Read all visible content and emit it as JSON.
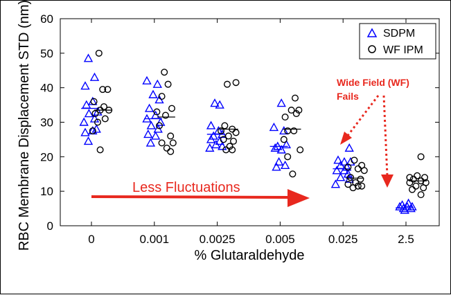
{
  "chart_data": {
    "type": "scatter",
    "xlabel": "% Glutaraldehyde",
    "ylabel": "RBC Membrane Displacement STD (nm)",
    "categories": [
      "0",
      "0.001",
      "0.0025",
      "0.005",
      "0.025",
      "2.5"
    ],
    "ylim": [
      0,
      60
    ],
    "yticks": [
      0,
      10,
      20,
      30,
      40,
      50,
      60
    ],
    "grid": false,
    "legend_position": "top-right",
    "series": [
      {
        "name": "SDPM",
        "marker": "triangle",
        "color": "#0000ff",
        "points": [
          [
            [
              -0.05,
              48.5
            ],
            [
              0.05,
              43
            ],
            [
              -0.1,
              40.5
            ],
            [
              0.02,
              36
            ],
            [
              -0.08,
              35
            ],
            [
              0.1,
              33
            ],
            [
              -0.04,
              32.5
            ],
            [
              0.05,
              31
            ],
            [
              -0.12,
              30
            ],
            [
              0.08,
              28
            ],
            [
              -0.1,
              27
            ],
            [
              0.02,
              27.5
            ],
            [
              -0.05,
              24.5
            ]
          ],
          [
            [
              -0.12,
              42
            ],
            [
              0.05,
              41
            ],
            [
              -0.02,
              38
            ],
            [
              0.08,
              36.5
            ],
            [
              -0.08,
              34
            ],
            [
              0.02,
              32
            ],
            [
              -0.12,
              31
            ],
            [
              0.1,
              30
            ],
            [
              -0.05,
              29
            ],
            [
              0.06,
              28
            ],
            [
              -0.1,
              26.5
            ],
            [
              0.02,
              26
            ],
            [
              -0.06,
              24
            ]
          ],
          [
            [
              -0.04,
              35.5
            ],
            [
              0.04,
              35
            ],
            [
              -0.1,
              29
            ],
            [
              0.02,
              27.5
            ],
            [
              -0.06,
              26
            ],
            [
              0.08,
              26.5
            ],
            [
              -0.1,
              25
            ],
            [
              0.04,
              24.5
            ],
            [
              -0.02,
              23.5
            ],
            [
              0.08,
              23
            ],
            [
              -0.12,
              22.5
            ]
          ],
          [
            [
              0.02,
              35.5
            ],
            [
              -0.1,
              28.5
            ],
            [
              0.06,
              27.5
            ],
            [
              -0.04,
              23
            ],
            [
              0.1,
              23.5
            ],
            [
              -0.08,
              22.5
            ],
            [
              0.02,
              22
            ],
            [
              -0.02,
              18.5
            ],
            [
              0.08,
              17.5
            ],
            [
              -0.06,
              17
            ]
          ],
          [
            [
              0.1,
              22.5
            ],
            [
              -0.08,
              19
            ],
            [
              0.02,
              18.5
            ],
            [
              0.12,
              18.5
            ],
            [
              -0.04,
              17.5
            ],
            [
              0.06,
              17
            ],
            [
              -0.1,
              16
            ],
            [
              0.02,
              16
            ],
            [
              0.08,
              15
            ],
            [
              -0.04,
              14
            ],
            [
              0.1,
              13.5
            ],
            [
              -0.12,
              12
            ]
          ],
          [
            [
              -0.1,
              5.5
            ],
            [
              -0.04,
              5
            ],
            [
              0.02,
              5.5
            ],
            [
              0.08,
              5
            ],
            [
              -0.06,
              6
            ],
            [
              0.04,
              6.5
            ],
            [
              0.1,
              5.5
            ],
            [
              -0.02,
              4.5
            ]
          ]
        ],
        "medians": [
          34.0,
          31.0,
          26.5,
          23.0,
          16.5,
          5.2
        ]
      },
      {
        "name": "WF IPM",
        "marker": "circle",
        "color": "#000000",
        "points": [
          [
            [
              0.12,
              50
            ],
            [
              0.18,
              39.5
            ],
            [
              0.26,
              39.5
            ],
            [
              0.04,
              36
            ],
            [
              0.2,
              34.5
            ],
            [
              0.14,
              33.5
            ],
            [
              0.28,
              33.5
            ],
            [
              0.06,
              32.5
            ],
            [
              0.22,
              31
            ],
            [
              0.1,
              30
            ],
            [
              0.02,
              27.5
            ],
            [
              0.14,
              22
            ]
          ],
          [
            [
              0.16,
              44.5
            ],
            [
              0.22,
              41
            ],
            [
              0.12,
              37.5
            ],
            [
              0.28,
              34
            ],
            [
              0.04,
              33
            ],
            [
              0.18,
              32
            ],
            [
              0.08,
              29
            ],
            [
              0.26,
              26
            ],
            [
              0.12,
              24
            ],
            [
              0.2,
              22.5
            ],
            [
              0.3,
              24
            ],
            [
              0.26,
              21.5
            ]
          ],
          [
            [
              0.16,
              41
            ],
            [
              0.3,
              41.5
            ],
            [
              0.12,
              29
            ],
            [
              0.24,
              28
            ],
            [
              0.06,
              27.5
            ],
            [
              0.3,
              27
            ],
            [
              0.18,
              26
            ],
            [
              0.1,
              25
            ],
            [
              0.26,
              24.5
            ],
            [
              0.2,
              23
            ],
            [
              0.14,
              22
            ],
            [
              0.24,
              22
            ]
          ],
          [
            [
              0.24,
              37
            ],
            [
              0.18,
              33.5
            ],
            [
              0.3,
              33.5
            ],
            [
              0.26,
              32.5
            ],
            [
              0.08,
              31.5
            ],
            [
              0.12,
              27.5
            ],
            [
              0.22,
              27.5
            ],
            [
              0.06,
              25
            ],
            [
              0.32,
              22
            ],
            [
              0.12,
              20
            ],
            [
              0.2,
              15
            ]
          ],
          [
            [
              0.18,
              19
            ],
            [
              0.3,
              17.5
            ],
            [
              0.08,
              17
            ],
            [
              0.24,
              16.5
            ],
            [
              0.34,
              16
            ],
            [
              0.12,
              14
            ],
            [
              0.28,
              13.5
            ],
            [
              0.2,
              12.5
            ],
            [
              0.08,
              12
            ],
            [
              0.3,
              11.5
            ],
            [
              0.16,
              11
            ],
            [
              0.24,
              11.5
            ]
          ],
          [
            [
              0.24,
              20
            ],
            [
              0.18,
              14.5
            ],
            [
              0.06,
              14
            ],
            [
              0.3,
              14
            ],
            [
              0.12,
              13.5
            ],
            [
              0.24,
              13
            ],
            [
              0.06,
              12.5
            ],
            [
              0.32,
              12.5
            ],
            [
              0.16,
              11.5
            ],
            [
              0.28,
              11
            ],
            [
              0.1,
              10.5
            ],
            [
              0.24,
              9
            ]
          ]
        ],
        "medians": [
          33.5,
          31.5,
          28.0,
          28.0,
          13.8,
          13.0
        ]
      }
    ],
    "annotations": {
      "wide_field_line1": "Wide Field (WF)",
      "wide_field_line2": "Fails",
      "less_fluctuations": "Less Fluctuations"
    }
  },
  "colors": {
    "sdpm": "#0000ff",
    "wfipm": "#000000",
    "annotation": "#e8281e"
  }
}
